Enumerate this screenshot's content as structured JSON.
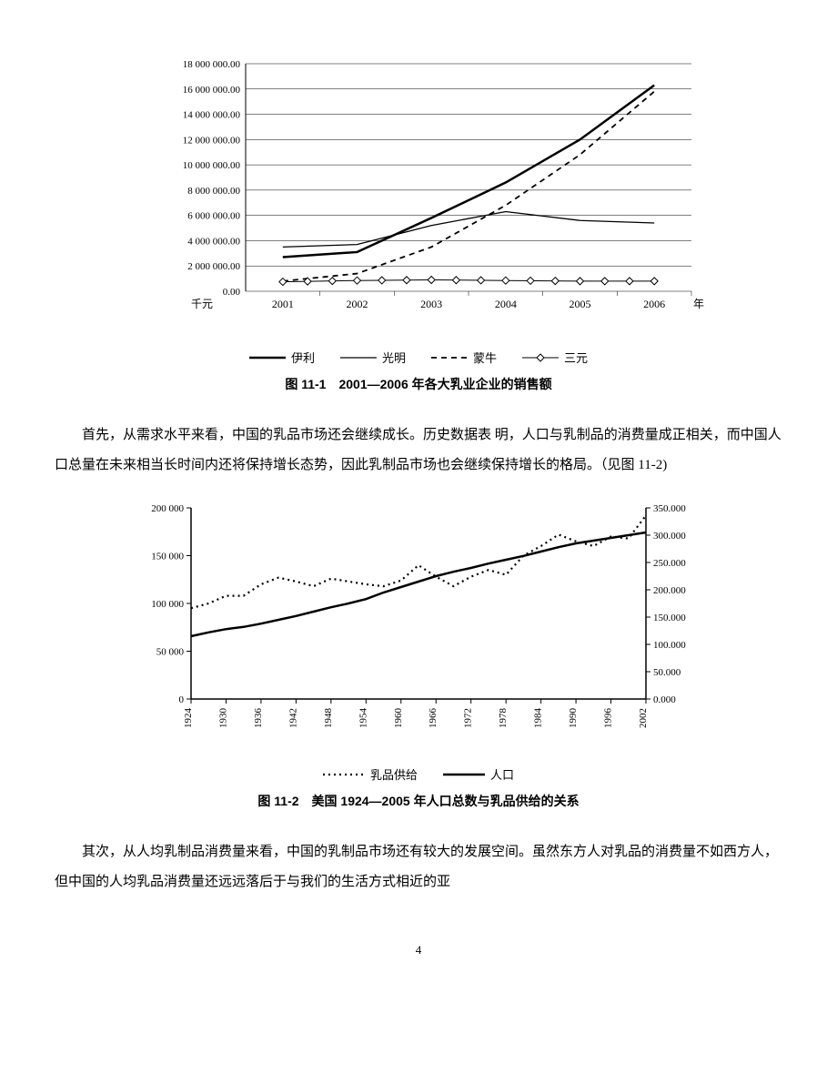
{
  "chart1": {
    "type": "line",
    "title": "图 11-1　2001—2006 年各大乳业企业的销售额",
    "x_categories": [
      "2001",
      "2002",
      "2003",
      "2004",
      "2005",
      "2006"
    ],
    "x_suffix": "年",
    "y_unit": "千元",
    "y_ticks": [
      "0.00",
      "2 000 000.00",
      "4 000 000.00",
      "6 000 000.00",
      "8 000 000.00",
      "10 000 000.00",
      "12 000 000.00",
      "14 000 000.00",
      "16 000 000.00",
      "18 000 000.00"
    ],
    "ylim": [
      0,
      18000000
    ],
    "series": [
      {
        "name": "伊利",
        "style": "solid",
        "weight": 2.5,
        "marker": "none",
        "values": [
          2700000,
          3100000,
          5800000,
          8600000,
          12000000,
          16300000
        ]
      },
      {
        "name": "光明",
        "style": "solid",
        "weight": 1.3,
        "marker": "none",
        "values": [
          3500000,
          3700000,
          5200000,
          6300000,
          5600000,
          5400000
        ]
      },
      {
        "name": "蒙牛",
        "style": "dashed",
        "weight": 1.8,
        "marker": "none",
        "values": [
          800000,
          1400000,
          3500000,
          6800000,
          10800000,
          15800000
        ]
      },
      {
        "name": "三元",
        "style": "solid",
        "weight": 1.0,
        "marker": "diamond",
        "values": [
          750000,
          850000,
          900000,
          850000,
          800000,
          800000
        ]
      }
    ],
    "line_color": "#000000",
    "grid_color": "#000000",
    "bg": "#ffffff"
  },
  "para1": "首先，从需求水平来看，中国的乳品市场还会继续成长。历史数据表 明，人口与乳制品的消费量成正相关，而中国人口总量在未来相当长时间内还将保持增长态势，因此乳制品市场也会继续保持增长的格局。（见图 11-2)",
  "chart2": {
    "type": "line-dual-axis",
    "title": "图 11-2　美国 1924—2005 年人口总数与乳品供给的关系",
    "x_ticks": [
      "1924",
      "1930",
      "1936",
      "1942",
      "1948",
      "1954",
      "1960",
      "1966",
      "1972",
      "1978",
      "1984",
      "1990",
      "1996",
      "2002"
    ],
    "y_left_ticks": [
      "0",
      "50 000",
      "100 000",
      "150 000",
      "200 000"
    ],
    "y_left_lim": [
      0,
      200000
    ],
    "y_right_ticks": [
      "0.000",
      "50.000",
      "100.000",
      "150.000",
      "200.000",
      "250.000",
      "300.000",
      "350.000"
    ],
    "y_right_lim": [
      0,
      350
    ],
    "series": [
      {
        "name": "乳品供给",
        "style": "dotted",
        "weight": 2.2,
        "axis": "left",
        "values": [
          95000,
          100000,
          108000,
          108000,
          120000,
          127000,
          123000,
          118000,
          126000,
          123000,
          120000,
          118000,
          124000,
          140000,
          128000,
          118000,
          128000,
          135000,
          130000,
          150000,
          160000,
          172000,
          165000,
          160000,
          170000,
          168000,
          192000
        ]
      },
      {
        "name": "人口",
        "style": "solid",
        "weight": 2.5,
        "axis": "right",
        "values": [
          115,
          122,
          128,
          132,
          138,
          145,
          152,
          160,
          168,
          175,
          183,
          195,
          205,
          215,
          225,
          233,
          240,
          248,
          255,
          262,
          270,
          278,
          285,
          290,
          295,
          300,
          305
        ]
      }
    ],
    "line_color": "#000000",
    "bg": "#ffffff"
  },
  "para2": "其次，从人均乳制品消费量来看，中国的乳制品市场还有较大的发展空间。虽然东方人对乳品的消费量不如西方人，但中国的人均乳品消费量还远远落后于与我们的生活方式相近的亚",
  "page_number": "4"
}
